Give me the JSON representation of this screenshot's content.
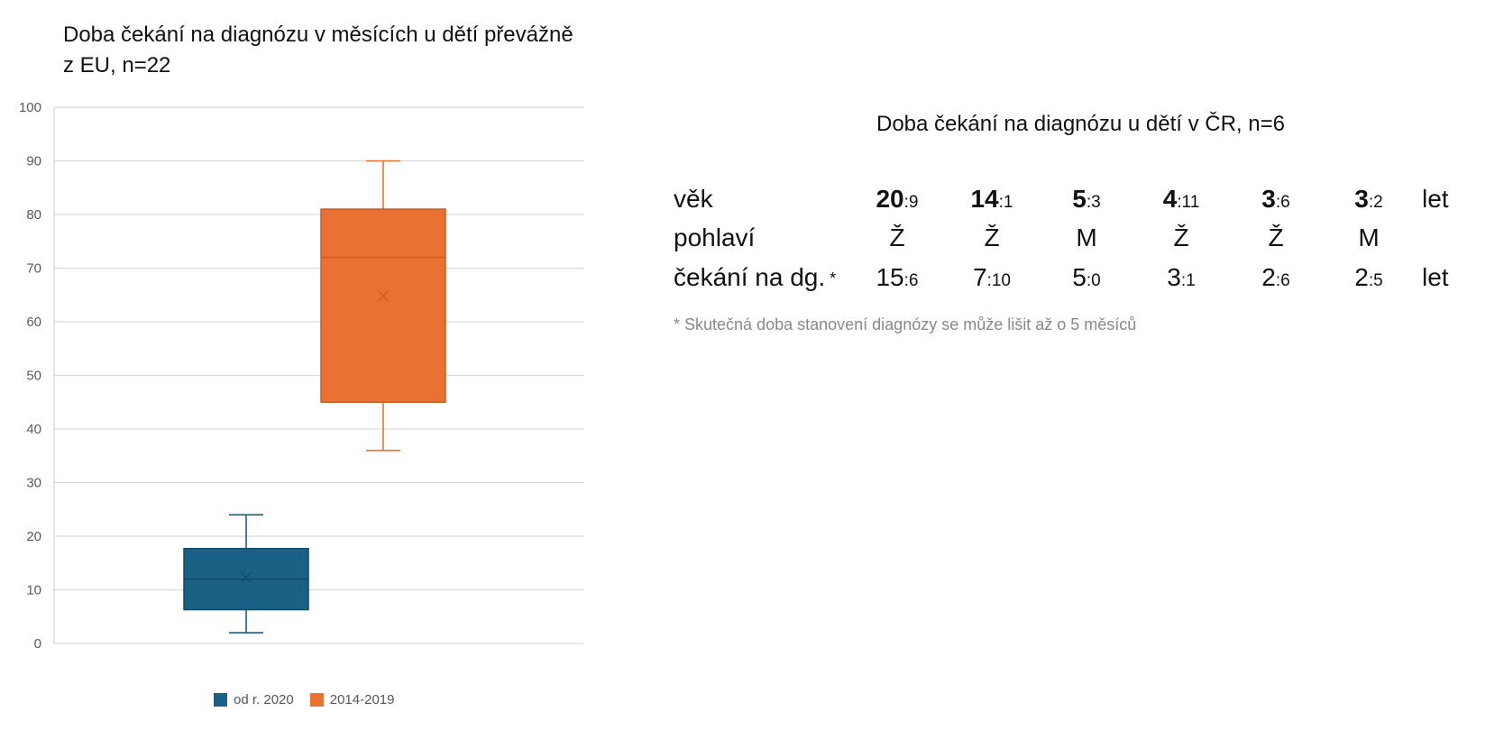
{
  "chart_data": {
    "type": "box",
    "title": "Doba čekání na diagnózu v měsících u dětí převážně z EU, n=22",
    "ylim": [
      0,
      100
    ],
    "yticks": [
      "0",
      "10",
      "20",
      "30",
      "40",
      "50",
      "60",
      "70",
      "80",
      "90",
      "100"
    ],
    "grid": true,
    "legend_position": "bottom",
    "series": [
      {
        "name": "od r. 2020",
        "color": "#1a6285",
        "min": 2,
        "q1": 6.3,
        "median": 12,
        "mean": 12.3,
        "q3": 17.7,
        "max": 24
      },
      {
        "name": "2014-2019",
        "color": "#e97132",
        "min": 36,
        "q1": 45,
        "median": 72,
        "mean": 64.8,
        "q3": 81,
        "max": 90
      }
    ]
  },
  "table": {
    "title": "Doba čekání na diagnózu u dětí v ČR, n=6",
    "rows": [
      {
        "label": "věk",
        "unit": "let",
        "cells": [
          {
            "big": "20",
            "small": ":9"
          },
          {
            "big": "14",
            "small": ":1"
          },
          {
            "big": "5",
            "small": ":3"
          },
          {
            "big": "4",
            "small": ":11"
          },
          {
            "big": "3",
            "small": ":6"
          },
          {
            "big": "3",
            "small": ":2"
          }
        ]
      },
      {
        "label": "pohlaví",
        "unit": "",
        "cells": [
          {
            "big": "Ž",
            "small": ""
          },
          {
            "big": "Ž",
            "small": ""
          },
          {
            "big": "M",
            "small": ""
          },
          {
            "big": "Ž",
            "small": ""
          },
          {
            "big": "Ž",
            "small": ""
          },
          {
            "big": "M",
            "small": ""
          }
        ]
      },
      {
        "label": "čekání na dg.",
        "label_mark": "*",
        "unit": "let",
        "cells": [
          {
            "big": "15",
            "small": ":6"
          },
          {
            "big": "7",
            "small": ":10"
          },
          {
            "big": "5",
            "small": ":0"
          },
          {
            "big": "3",
            "small": ":1"
          },
          {
            "big": "2",
            "small": ":6"
          },
          {
            "big": "2",
            "small": ":5"
          }
        ]
      }
    ],
    "footnote": "* Skutečná doba stanovení diagnózy se může lišit až o 5 měsíců"
  }
}
